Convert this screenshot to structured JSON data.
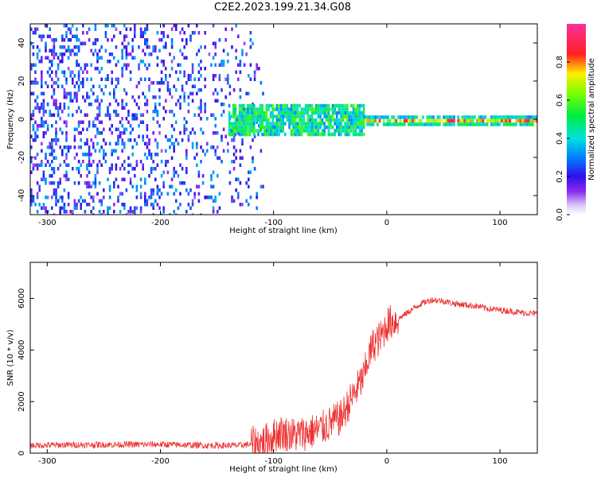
{
  "title": "C2E2.2023.199.21.34.G08",
  "chart_data": [
    {
      "type": "heatmap",
      "xlabel": "Height of straight line (km)",
      "ylabel": "Frequency (Hz)",
      "xlim": [
        -315,
        133
      ],
      "ylim": [
        -50,
        50
      ],
      "xticks": [
        -300,
        -200,
        -100,
        0,
        100
      ],
      "xtick_labels": [
        "-300",
        "-200",
        "-100",
        "0",
        "100"
      ],
      "yticks": [
        -40,
        -20,
        0,
        20,
        40
      ],
      "ytick_labels": [
        "-40",
        "-20",
        "0",
        "20",
        "40"
      ],
      "colorbar": {
        "label": "Normalized spectral amplitude",
        "range": [
          0,
          1
        ],
        "ticks": [
          0.0,
          0.2,
          0.4,
          0.6,
          0.8
        ],
        "tick_labels": [
          "0.0",
          "0.2",
          "0.4",
          "0.6",
          "0.8"
        ],
        "colormap": "rainbow (white → purple → blue → cyan → green → yellow → red → magenta)"
      },
      "features": [
        {
          "description": "broadband noise, frequency spread",
          "x_range": [
            -315,
            -110
          ],
          "y_range": [
            -50,
            50
          ],
          "amplitude": [
            0.1,
            0.35
          ]
        },
        {
          "description": "narrowing signal near 0 Hz",
          "x_range": [
            -140,
            -20
          ],
          "y_range": [
            -8,
            8
          ],
          "amplitude": [
            0.3,
            0.6
          ]
        },
        {
          "description": "stable tone at ~0 Hz",
          "x_range": [
            -20,
            133
          ],
          "y_range": [
            -2,
            2
          ],
          "amplitude": [
            0.6,
            0.95
          ]
        }
      ],
      "grid": false
    },
    {
      "type": "line",
      "xlabel": "Height of straight line (km)",
      "ylabel": "SNR (10 * v/v)",
      "xlim": [
        -315,
        133
      ],
      "ylim": [
        0,
        7400
      ],
      "xticks": [
        -300,
        -200,
        -100,
        0,
        100
      ],
      "xtick_labels": [
        "-300",
        "-200",
        "-100",
        "0",
        "100"
      ],
      "yticks": [
        0,
        2000,
        4000,
        6000
      ],
      "ytick_labels": [
        "0",
        "2000",
        "4000",
        "6000"
      ],
      "color": "#ee3333",
      "x": [
        -315,
        -280,
        -240,
        -200,
        -160,
        -130,
        -110,
        -95,
        -80,
        -60,
        -40,
        -30,
        -20,
        -17,
        -12,
        -5,
        0,
        10,
        20,
        30,
        40,
        50,
        60,
        70,
        80,
        90,
        100,
        110,
        120,
        133
      ],
      "y": [
        300,
        320,
        330,
        340,
        300,
        300,
        400,
        800,
        700,
        900,
        1400,
        2200,
        3000,
        3600,
        4200,
        4500,
        5000,
        5200,
        5500,
        5800,
        5950,
        5900,
        5800,
        5750,
        5700,
        5600,
        5550,
        5500,
        5450,
        5400
      ],
      "grid": false
    }
  ]
}
